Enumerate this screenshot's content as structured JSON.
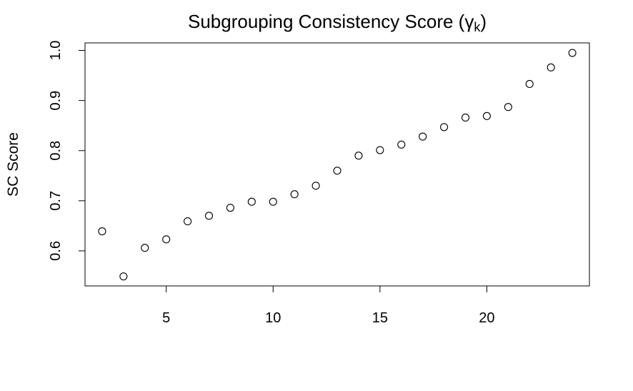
{
  "chart_data": {
    "type": "scatter",
    "title": "Subgrouping Consistency Score (",
    "title_symbol": "γ",
    "title_subscript": "k",
    "title_close": ")",
    "xlabel": "",
    "ylabel": "SC Score",
    "xlim": [
      1.2,
      24.8
    ],
    "ylim": [
      0.53,
      1.015
    ],
    "x_ticks": [
      5,
      10,
      15,
      20
    ],
    "y_ticks": [
      0.6,
      0.7,
      0.8,
      0.9,
      1.0
    ],
    "x_tick_labels": [
      "5",
      "10",
      "15",
      "20"
    ],
    "y_tick_labels": [
      "0.6",
      "0.7",
      "0.8",
      "0.9",
      "1.0"
    ],
    "grid": false,
    "marker": "open-circle",
    "x": [
      2,
      3,
      4,
      5,
      6,
      7,
      8,
      9,
      10,
      11,
      12,
      13,
      14,
      15,
      16,
      17,
      18,
      19,
      20,
      21,
      22,
      23,
      24
    ],
    "y": [
      0.639,
      0.549,
      0.606,
      0.623,
      0.659,
      0.67,
      0.686,
      0.698,
      0.698,
      0.713,
      0.73,
      0.76,
      0.79,
      0.801,
      0.812,
      0.828,
      0.847,
      0.866,
      0.869,
      0.887,
      0.933,
      0.966,
      0.995
    ]
  }
}
